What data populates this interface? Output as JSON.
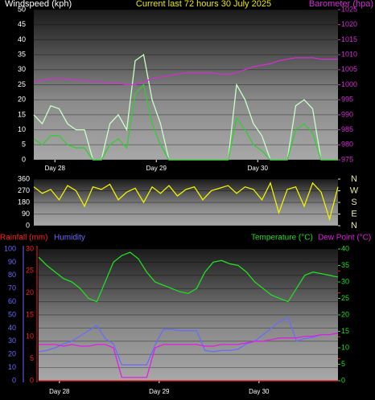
{
  "chart_data": [
    {
      "type": "line",
      "title": "Current last 72 hours 30 July 2025",
      "ylabel": "Windspeed (kph)",
      "y2label": "Barometer (hpa)",
      "ycolor": "#ffffff",
      "y2color": "#d030d0",
      "titlecolor": "#e8e800",
      "x": [
        0,
        2,
        4,
        6,
        8,
        10,
        12,
        14,
        16,
        18,
        20,
        22,
        24,
        26,
        28,
        30,
        32,
        34,
        36,
        38,
        40,
        42,
        44,
        46,
        48,
        50,
        52,
        54,
        56,
        58,
        60,
        62,
        64,
        66,
        68,
        70,
        72
      ],
      "xlim": [
        0,
        72
      ],
      "xticks": [
        {
          "value": 5,
          "label": "Day 28"
        },
        {
          "value": 29,
          "label": "Day 29"
        },
        {
          "value": 53,
          "label": "Day 30"
        }
      ],
      "ylim": [
        0,
        50
      ],
      "yticks": [
        0,
        5,
        10,
        15,
        20,
        25,
        30,
        35,
        40,
        45,
        50
      ],
      "y2lim": [
        975,
        1025
      ],
      "y2ticks": [
        975,
        980,
        985,
        990,
        995,
        1000,
        1005,
        1010,
        1015,
        1020,
        1025
      ],
      "series": [
        {
          "color": "#c8ffc8",
          "values": [
            15,
            12,
            18,
            17,
            12,
            10,
            10,
            0,
            0,
            12,
            15,
            10,
            33,
            35,
            20,
            12,
            0,
            0,
            0,
            0,
            0,
            0,
            0,
            0,
            25,
            20,
            12,
            8,
            0,
            0,
            0,
            18,
            20,
            17,
            0,
            0,
            0
          ]
        },
        {
          "color": "#33cc33",
          "values": [
            7,
            5,
            8,
            8,
            5,
            4,
            4,
            0,
            0,
            5,
            7,
            4,
            22,
            25,
            12,
            5,
            0,
            0,
            0,
            0,
            0,
            0,
            0,
            0,
            14,
            10,
            5,
            3,
            0,
            0,
            0,
            10,
            12,
            9,
            0,
            0,
            0
          ]
        },
        {
          "color": "#d030d0",
          "axis": "y2",
          "values": [
            1001,
            1001.5,
            1002,
            1002,
            1002,
            1001.5,
            1001.5,
            1001,
            1001,
            1000.5,
            1000.5,
            1000,
            1000,
            1001,
            1002,
            1002.5,
            1003,
            1003.5,
            1004,
            1004,
            1004,
            1004,
            1003.5,
            1003.5,
            1004,
            1005,
            1006,
            1006.5,
            1007,
            1008,
            1008.5,
            1009,
            1009,
            1009,
            1008.5,
            1008.5,
            1008.5
          ]
        }
      ]
    },
    {
      "type": "line",
      "ycolor": "#ffffff",
      "y2color": "#e8e8a0",
      "x": [
        0,
        2,
        4,
        6,
        8,
        10,
        12,
        14,
        16,
        18,
        20,
        22,
        24,
        26,
        28,
        30,
        32,
        34,
        36,
        38,
        40,
        42,
        44,
        46,
        48,
        50,
        52,
        54,
        56,
        58,
        60,
        62,
        64,
        66,
        68,
        70,
        72
      ],
      "xlim": [
        0,
        72
      ],
      "ylim": [
        0,
        360
      ],
      "yticks": [
        0,
        90,
        180,
        270,
        360
      ],
      "y2lim": [
        0,
        360
      ],
      "y2ticks": [
        {
          "value": 360,
          "label": "N"
        },
        {
          "value": 270,
          "label": "W"
        },
        {
          "value": 180,
          "label": "S"
        },
        {
          "value": 90,
          "label": "E"
        },
        {
          "value": 0,
          "label": "N"
        }
      ],
      "series": [
        {
          "color": "#f0f000",
          "values": [
            300,
            250,
            280,
            200,
            310,
            270,
            150,
            300,
            280,
            320,
            200,
            260,
            290,
            180,
            300,
            250,
            310,
            230,
            280,
            300,
            200,
            270,
            290,
            310,
            250,
            300,
            280,
            200,
            330,
            100,
            280,
            300,
            150,
            330,
            260,
            50,
            300
          ]
        }
      ]
    },
    {
      "type": "line",
      "ycolor": "#6a6aff",
      "y2color": "#22dd22",
      "y3color": "#ff2020",
      "x": [
        0,
        2,
        4,
        6,
        8,
        10,
        12,
        14,
        16,
        18,
        20,
        22,
        24,
        26,
        28,
        30,
        32,
        34,
        36,
        38,
        40,
        42,
        44,
        46,
        48,
        50,
        52,
        54,
        56,
        58,
        60,
        62,
        64,
        66,
        68,
        70,
        72
      ],
      "xlim": [
        0,
        72
      ],
      "xticks": [
        {
          "value": 5,
          "label": "Day 28"
        },
        {
          "value": 29,
          "label": "Day 29"
        },
        {
          "value": 53,
          "label": "Day 30"
        }
      ],
      "ylim": [
        0,
        100
      ],
      "yticks": [
        0,
        10,
        20,
        30,
        40,
        50,
        60,
        70,
        80,
        90,
        100
      ],
      "y2lim": [
        0,
        40
      ],
      "y2ticks": [
        0,
        5,
        10,
        15,
        20,
        25,
        30,
        35,
        40
      ],
      "y3lim": [
        0,
        30
      ],
      "y3ticks": [
        0,
        5,
        10,
        15,
        20,
        25,
        30
      ],
      "series": [
        {
          "name": "Rainfall (mm)",
          "color": "#ff2020",
          "axis": "y3",
          "values": [
            0,
            0,
            0,
            0,
            0,
            0,
            0,
            0,
            0,
            0,
            0,
            0,
            0,
            0,
            0,
            0,
            0,
            0,
            0,
            0,
            0,
            0,
            0,
            0,
            0,
            0,
            0,
            0,
            0,
            0,
            0,
            0,
            0,
            0,
            0,
            0,
            0
          ]
        },
        {
          "name": "Humidity",
          "color": "#6a6aff",
          "values": [
            22,
            23,
            25,
            28,
            30,
            34,
            38,
            42,
            32,
            28,
            12,
            12,
            12,
            12,
            27,
            39,
            39,
            38,
            38,
            38,
            23,
            22,
            23,
            23,
            24,
            28,
            30,
            35,
            40,
            45,
            48,
            30,
            32,
            33,
            35,
            35,
            36
          ]
        },
        {
          "name": "Temperature (°C)",
          "color": "#22dd22",
          "axis": "y2",
          "values": [
            37.5,
            35,
            33,
            31,
            30,
            28,
            25,
            24,
            30,
            36,
            38,
            39,
            37,
            33,
            30,
            29,
            28,
            27,
            26.5,
            28,
            33,
            36,
            36.5,
            35.5,
            35,
            33,
            30,
            28,
            26,
            25,
            24,
            28,
            32,
            33,
            32.5,
            32,
            31.5
          ]
        },
        {
          "name": "Dew Point (°C)",
          "color": "#e020e0",
          "axis": "y2",
          "values": [
            11,
            11,
            11,
            10.5,
            11,
            10.5,
            10.5,
            11,
            11,
            10,
            1,
            1,
            1,
            1,
            10,
            11,
            11,
            11,
            11,
            11,
            10.5,
            10.5,
            11,
            11,
            11,
            11.5,
            12,
            12,
            12.5,
            13,
            13,
            13,
            13.5,
            13.5,
            14,
            14,
            14.5
          ]
        }
      ]
    }
  ]
}
